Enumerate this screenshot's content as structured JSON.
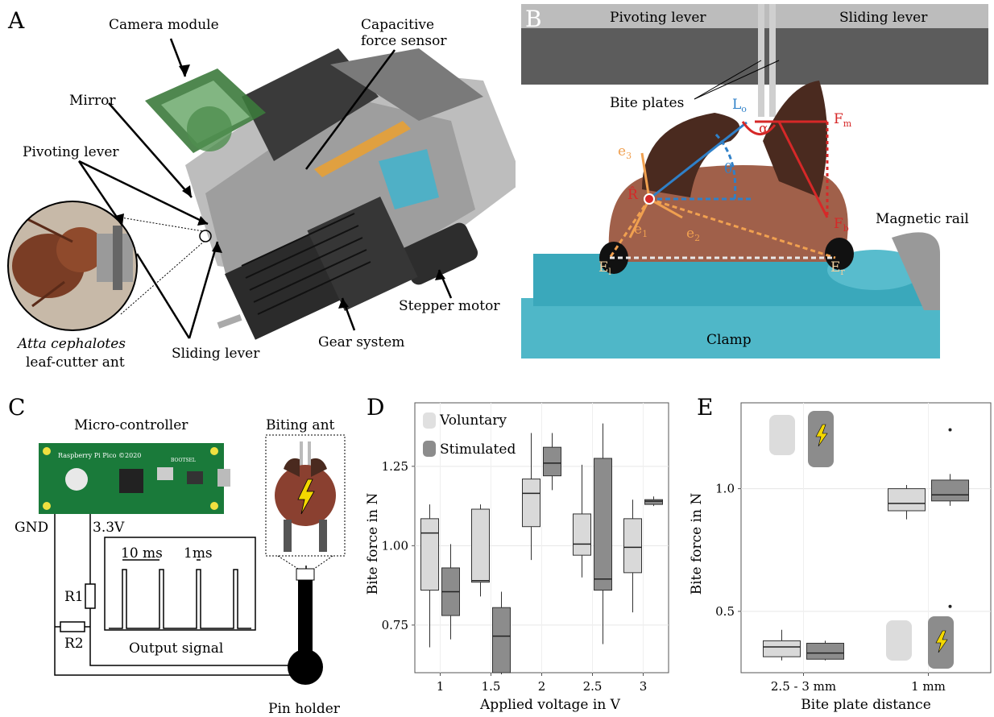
{
  "panel_a": {
    "letter": "A",
    "labels": {
      "camera": "Camera module",
      "force_sensor_1": "Capacitive",
      "force_sensor_2": "force sensor",
      "mirror": "Mirror",
      "pivoting": "Pivoting lever",
      "sliding": "Sliding lever",
      "gear": "Gear system",
      "stepper": "Stepper motor",
      "species": "Atta cephalotes",
      "species_common": "leaf-cutter ant"
    }
  },
  "panel_b": {
    "letter": "B",
    "labels": {
      "pivoting": "Pivoting lever",
      "sliding": "Sliding lever",
      "bite_plates": "Bite plates",
      "magnetic_rail": "Magnetic rail",
      "clamp": "Clamp",
      "L": "L",
      "L_sub": "o",
      "F_m": "F",
      "F_m_sub": "m",
      "F_b": "F",
      "F_b_sub": "b",
      "alpha": "α",
      "theta": "θ",
      "R": "R̂",
      "e1": "e",
      "e1_sub": "1",
      "e2": "e",
      "e2_sub": "2",
      "e3": "e",
      "e3_sub": "3",
      "El": "E",
      "El_sub": "l",
      "Er": "E",
      "Er_sub": "r"
    }
  },
  "panel_c": {
    "letter": "C",
    "labels": {
      "micro": "Micro-controller",
      "biting": "Biting ant",
      "board_text": "Raspberry Pi Pico ©2020",
      "bootsel": "BOOTSEL",
      "gnd": "GND",
      "v33": "3.3V",
      "r1": "R1",
      "r2": "R2",
      "t10": "10 ms",
      "t1": "1ms",
      "output": "Output signal",
      "pin": "Pin holder"
    }
  },
  "chart_data": [
    {
      "panel": "D",
      "type": "boxplot",
      "xlabel": "Applied voltage in V",
      "ylabel": "Bite force in N",
      "categories": [
        "1",
        "1.5",
        "2",
        "2.5",
        "3"
      ],
      "ylim": [
        0.6,
        1.45
      ],
      "yticks": [
        "0.75",
        "1.00",
        "1.25"
      ],
      "ytick_values": [
        0.75,
        1.0,
        1.25
      ],
      "legend": [
        "Voluntary",
        "Stimulated"
      ],
      "colors": {
        "Voluntary": "#d9d9d9",
        "Stimulated": "#8c8c8c"
      },
      "series": [
        {
          "name": "Voluntary",
          "boxes": [
            {
              "min": 0.68,
              "q1": 0.86,
              "median": 1.04,
              "q3": 1.085,
              "max": 1.13
            },
            {
              "min": 0.84,
              "q1": 0.885,
              "median": 0.89,
              "q3": 1.115,
              "max": 1.13
            },
            {
              "min": 0.955,
              "q1": 1.06,
              "median": 1.165,
              "q3": 1.21,
              "max": 1.355
            },
            {
              "min": 0.9,
              "q1": 0.97,
              "median": 1.005,
              "q3": 1.1,
              "max": 1.255
            },
            {
              "min": 0.79,
              "q1": 0.915,
              "median": 0.995,
              "q3": 1.085,
              "max": 1.145
            }
          ]
        },
        {
          "name": "Stimulated",
          "boxes": [
            {
              "min": 0.705,
              "q1": 0.78,
              "median": 0.855,
              "q3": 0.93,
              "max": 1.005
            },
            {
              "min": 0.595,
              "q1": 0.6,
              "median": 0.715,
              "q3": 0.805,
              "max": 0.855
            },
            {
              "min": 1.175,
              "q1": 1.22,
              "median": 1.26,
              "q3": 1.31,
              "max": 1.355
            },
            {
              "min": 0.69,
              "q1": 0.86,
              "median": 0.895,
              "q3": 1.275,
              "max": 1.385
            },
            {
              "min": 1.125,
              "q1": 1.13,
              "median": 1.14,
              "q3": 1.145,
              "max": 1.155
            }
          ]
        }
      ]
    },
    {
      "panel": "E",
      "type": "boxplot",
      "xlabel": "Bite plate distance",
      "ylabel": "Bite force in N",
      "categories": [
        "2.5 - 3 mm",
        "1 mm"
      ],
      "ylim": [
        0.25,
        1.35
      ],
      "yticks": [
        "0.5",
        "1.0"
      ],
      "ytick_values": [
        0.5,
        1.0
      ],
      "colors": {
        "Voluntary": "#d9d9d9",
        "Stimulated": "#8c8c8c"
      },
      "series": [
        {
          "name": "Voluntary",
          "boxes": [
            {
              "min": 0.3,
              "q1": 0.315,
              "median": 0.355,
              "q3": 0.38,
              "max": 0.425
            },
            {
              "min": 0.875,
              "q1": 0.91,
              "median": 0.94,
              "q3": 1.0,
              "max": 1.015
            }
          ]
        },
        {
          "name": "Stimulated",
          "boxes": [
            {
              "min": 0.3,
              "q1": 0.305,
              "median": 0.33,
              "q3": 0.37,
              "max": 0.38
            },
            {
              "min": 0.93,
              "q1": 0.95,
              "median": 0.975,
              "q3": 1.035,
              "max": 1.06,
              "outliers": [
                1.24,
                0.52
              ]
            }
          ]
        }
      ]
    }
  ]
}
